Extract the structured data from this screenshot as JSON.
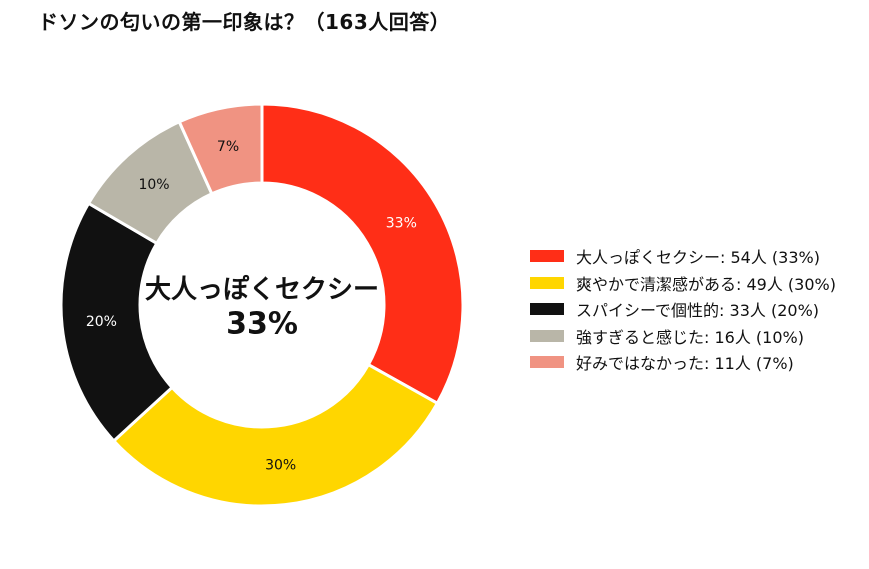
{
  "chart_data": {
    "type": "pie",
    "style": "donut",
    "title": "ドソンの匂いの第一印象は？（163人回答）",
    "total": 163,
    "slices": [
      {
        "label": "大人っぽくセクシー",
        "count": 54,
        "percent": 33,
        "percent_label": "33%",
        "legend_text": "大人っぽくセクシー:  54人 (33%)",
        "color": "#ff2e17",
        "pct_color": "#ffffff"
      },
      {
        "label": "爽やかで清潔感がある",
        "count": 49,
        "percent": 30,
        "percent_label": "30%",
        "legend_text": "爽やかで清潔感がある:  49人 (30%)",
        "color": "#ffd600",
        "pct_color": "#111111"
      },
      {
        "label": "スパイシーで個性的",
        "count": 33,
        "percent": 20,
        "percent_label": "20%",
        "legend_text": "スパイシーで個性的:  33人 (20%)",
        "color": "#111111",
        "pct_color": "#ffffff"
      },
      {
        "label": "強すぎると感じた",
        "count": 16,
        "percent": 10,
        "percent_label": "10%",
        "legend_text": "強すぎると感じた:  16人 (10%)",
        "color": "#b9b6a8",
        "pct_color": "#111111"
      },
      {
        "label": "好みではなかった",
        "count": 11,
        "percent": 7,
        "percent_label": "7%",
        "legend_text": "好みではなかった:  11人 (7%)",
        "color": "#f09382",
        "pct_color": "#111111"
      }
    ],
    "center_label": "大人っぽくセクシー",
    "center_value": "33%",
    "legend_position": "right"
  }
}
